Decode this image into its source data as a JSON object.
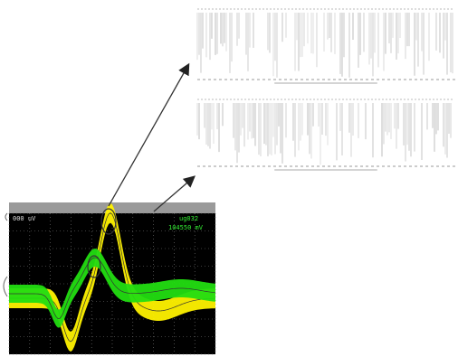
{
  "scope": {
    "readout_left": "000 uV",
    "readout_right_top": "ug032",
    "readout_right_bottom": "104550 mV",
    "channels": [
      {
        "name": "yellow",
        "color": "#fff200"
      },
      {
        "name": "green",
        "color": "#22dd11"
      }
    ]
  },
  "colors": {
    "scope_background": "#000000",
    "grid": "#7a7a7a",
    "arrow": "#333333",
    "raster_line": "#6a6a6a"
  },
  "icons": [
    "arrow-upper",
    "arrow-lower",
    "raster-panel-top",
    "raster-panel-bottom"
  ]
}
